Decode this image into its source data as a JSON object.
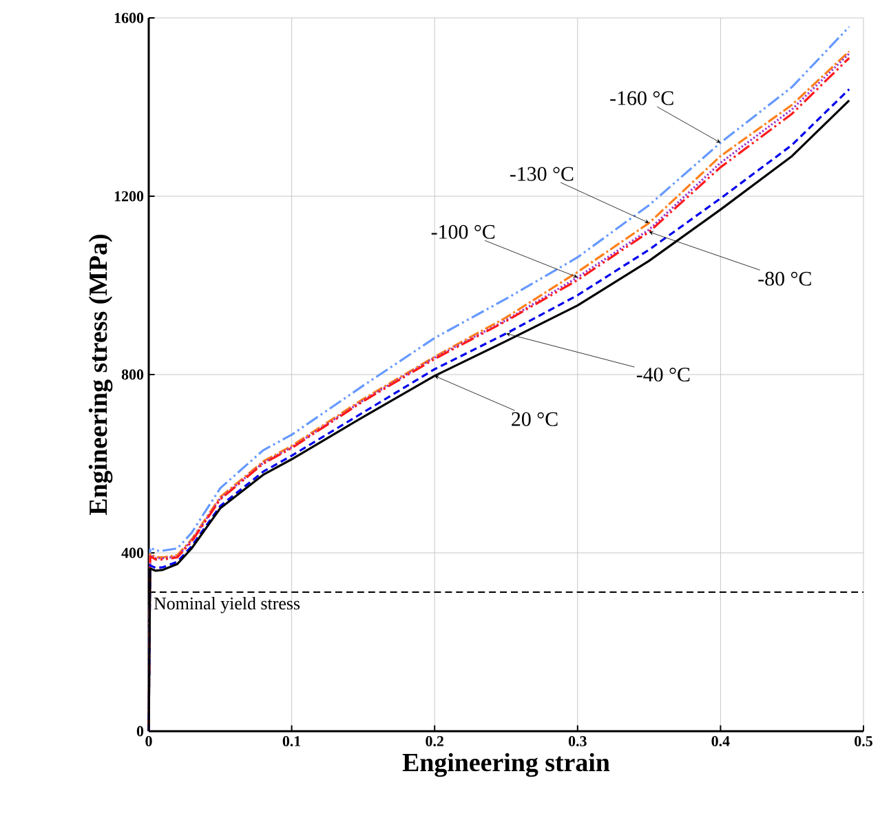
{
  "chart_data": {
    "type": "line",
    "xlabel": "Engineering strain",
    "ylabel": "Engineering stress  (MPa)",
    "x": [
      0,
      0.001,
      0.005,
      0.01,
      0.02,
      0.03,
      0.05,
      0.08,
      0.1,
      0.15,
      0.2,
      0.25,
      0.3,
      0.35,
      0.4,
      0.45,
      0.49
    ],
    "series": [
      {
        "name": "20 °C",
        "color": "#000000",
        "line_style": "solid",
        "values": [
          0,
          365,
          360,
          362,
          375,
          410,
          500,
          575,
          610,
          705,
          797,
          875,
          955,
          1055,
          1170,
          1290,
          1415
        ]
      },
      {
        "name": "-40 °C",
        "color": "#0000ee",
        "line_style": "dashed",
        "values": [
          0,
          372,
          366,
          368,
          380,
          415,
          505,
          582,
          618,
          715,
          812,
          892,
          978,
          1080,
          1195,
          1315,
          1440
        ]
      },
      {
        "name": "-80 °C",
        "color": "#ff1a1a",
        "line_style": "dashdotdot",
        "values": [
          0,
          392,
          385,
          385,
          390,
          425,
          520,
          600,
          635,
          740,
          835,
          920,
          1012,
          1120,
          1265,
          1385,
          1510
        ]
      },
      {
        "name": "-100 °C",
        "color": "#9933cc",
        "line_style": "dotted",
        "values": [
          0,
          395,
          388,
          388,
          392,
          428,
          522,
          602,
          637,
          742,
          838,
          922,
          1018,
          1125,
          1275,
          1395,
          1520
        ]
      },
      {
        "name": "-130 °C",
        "color": "#ff7f1a",
        "line_style": "dashdot",
        "values": [
          0,
          398,
          390,
          390,
          395,
          430,
          525,
          605,
          640,
          745,
          840,
          928,
          1030,
          1140,
          1290,
          1405,
          1525
        ]
      },
      {
        "name": "-160 °C",
        "color": "#6699ff",
        "line_style": "dashdotdot",
        "values": [
          0,
          412,
          405,
          405,
          410,
          445,
          545,
          630,
          665,
          775,
          882,
          970,
          1063,
          1180,
          1320,
          1445,
          1580
        ]
      }
    ],
    "xlim": [
      0,
      0.5
    ],
    "ylim": [
      0,
      1600
    ],
    "xticks": [
      0,
      0.1,
      0.2,
      0.3,
      0.4,
      0.5
    ],
    "yticks": [
      0,
      400,
      800,
      1200,
      1600
    ],
    "grid": true,
    "ref_lines": [
      {
        "axis": "y",
        "value": 312,
        "label": "Nominal yield stress",
        "color": "#000000",
        "line_style": "dashed"
      }
    ]
  }
}
